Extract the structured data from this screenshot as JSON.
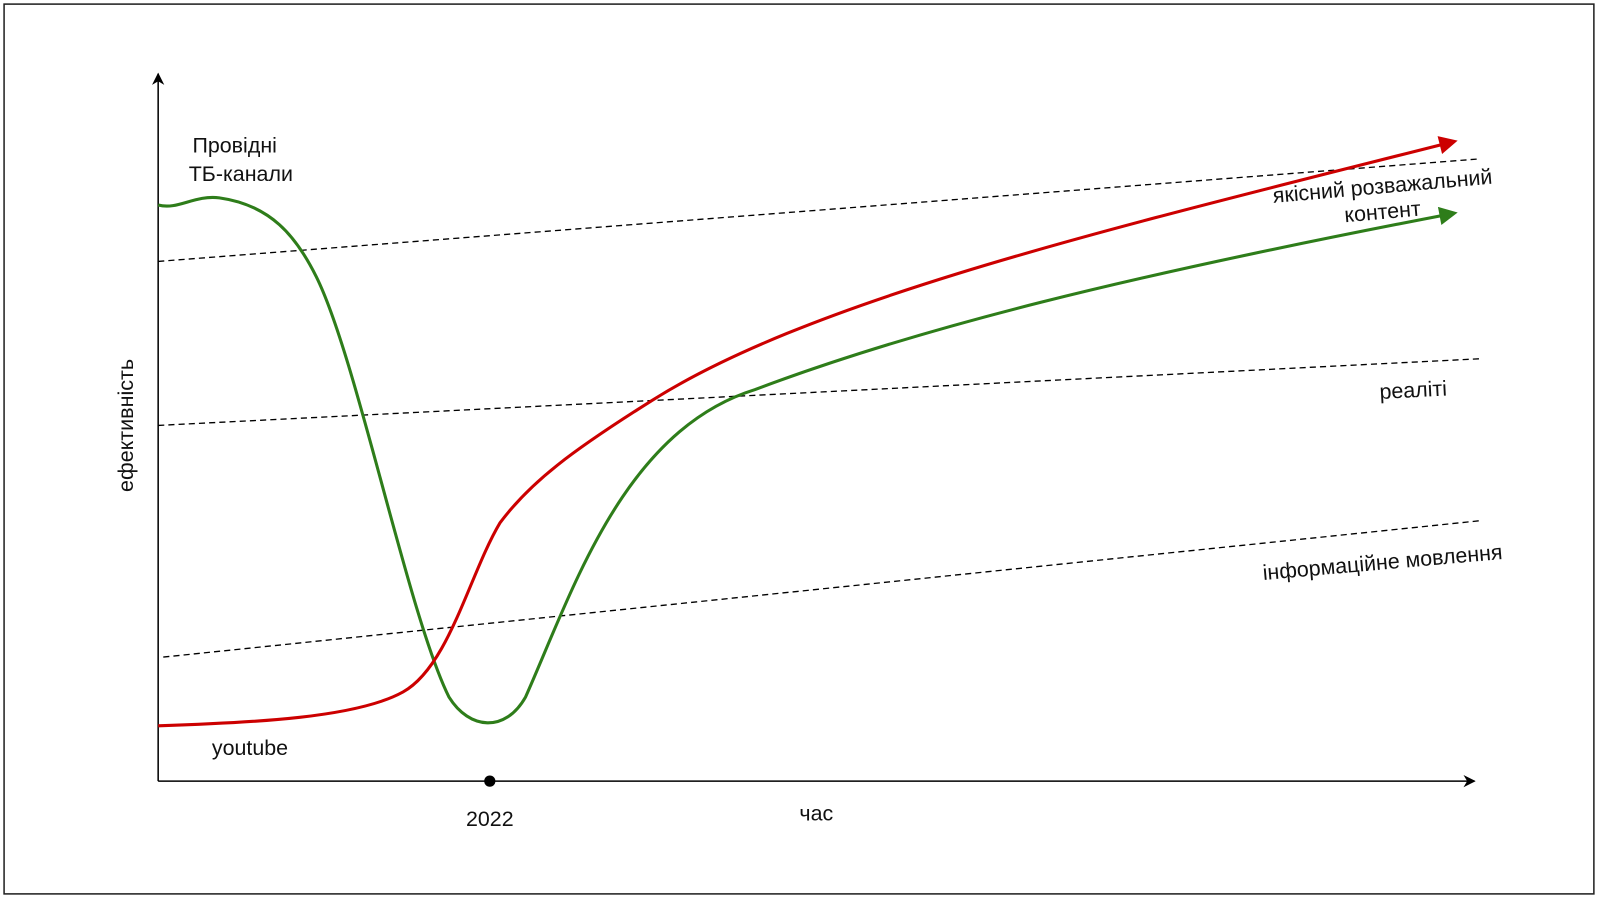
{
  "axes": {
    "y_label": "ефективність",
    "x_label": "час",
    "x_marker": "2022"
  },
  "curves": [
    {
      "label": [
        "Провідні",
        "ТБ-канали"
      ]
    },
    {
      "label": [
        "youtube"
      ]
    }
  ],
  "levels": [
    {
      "label": [
        "якісний розважальний",
        "контент"
      ]
    },
    {
      "label": [
        "реаліті"
      ]
    },
    {
      "label": [
        "інформаційне мовлення"
      ]
    }
  ]
}
